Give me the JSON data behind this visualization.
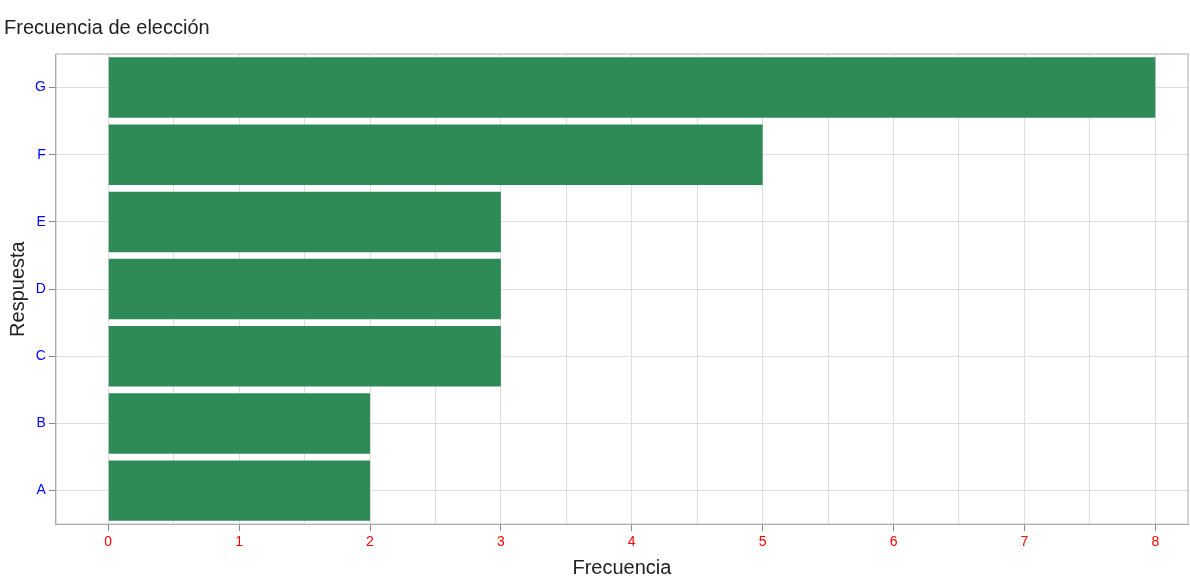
{
  "chart_data": {
    "type": "bar",
    "orientation": "horizontal",
    "title": "Frecuencia de elección",
    "xlabel": "Frecuencia",
    "ylabel": "Respuesta",
    "categories": [
      "G",
      "F",
      "E",
      "D",
      "C",
      "B",
      "A"
    ],
    "values": [
      8,
      5,
      3,
      3,
      3,
      2,
      2
    ],
    "color": "#2e8b57",
    "xlim": [
      -0.4,
      8.25
    ],
    "xticks": [
      0,
      {
        "value": 0.5,
        "label": null
      },
      1,
      {
        "value": 1.5,
        "label": null
      },
      2,
      {
        "value": 2.5,
        "label": null
      },
      3,
      {
        "value": 3.5,
        "label": null
      },
      4,
      {
        "value": 4.5,
        "label": null
      },
      5,
      {
        "value": 5.5,
        "label": null
      },
      6,
      {
        "value": 6.5,
        "label": null
      },
      7,
      {
        "value": 7.5,
        "label": null
      },
      8
    ],
    "grid": true,
    "legend": false
  }
}
